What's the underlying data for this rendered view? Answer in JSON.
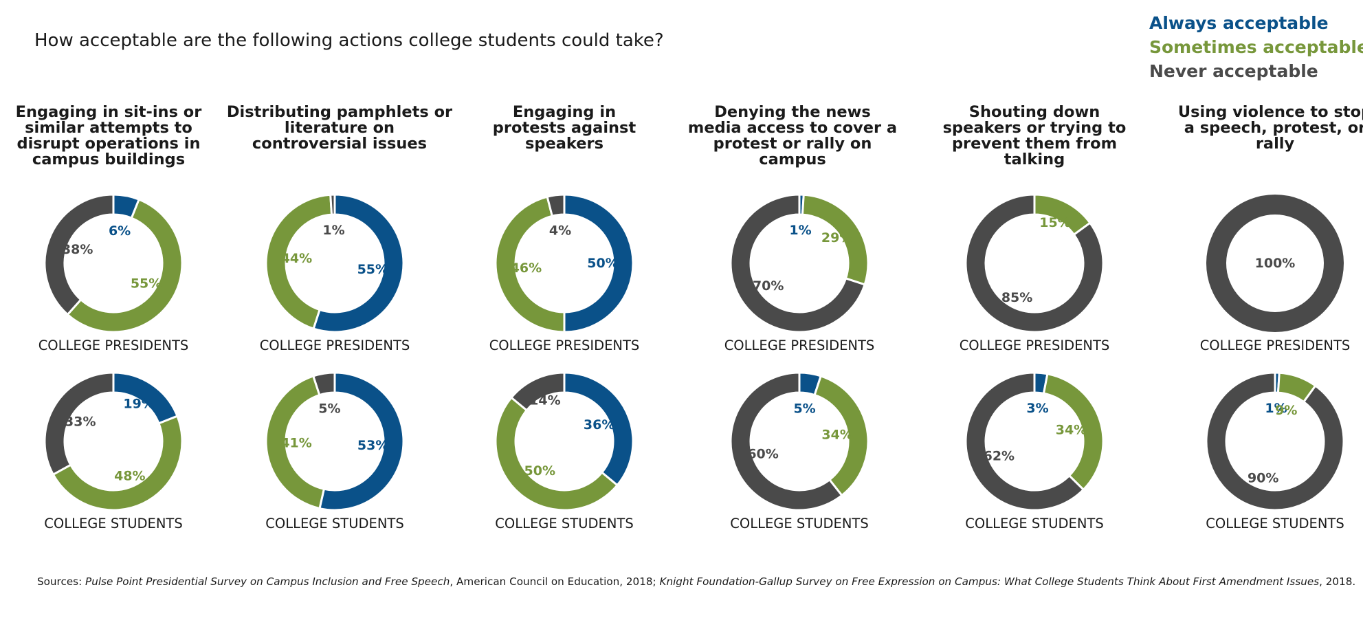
{
  "title": "How acceptable are the following actions college students could take?",
  "colors": {
    "always": "#0a5189",
    "sometimes": "#77973b",
    "never": "#4a4a4a"
  },
  "legend": [
    "Always acceptable",
    "Sometimes acceptable",
    "Never acceptable"
  ],
  "groups": {
    "presidents": "COLLEGE PRESIDENTS",
    "students": "COLLEGE STUDENTS"
  },
  "chart_data": [
    {
      "type": "pie",
      "title": "Engaging in sit-ins or similar attempts to disrupt operations in campus buildings",
      "categories": [
        "Always acceptable",
        "Sometimes acceptable",
        "Never acceptable"
      ],
      "series": [
        {
          "name": "COLLEGE PRESIDENTS",
          "values": [
            6,
            55,
            38
          ]
        },
        {
          "name": "COLLEGE STUDENTS",
          "values": [
            19,
            48,
            33
          ]
        }
      ]
    },
    {
      "type": "pie",
      "title": "Distributing pamphlets or literature on controversial issues",
      "categories": [
        "Always acceptable",
        "Sometimes acceptable",
        "Never acceptable"
      ],
      "series": [
        {
          "name": "COLLEGE PRESIDENTS",
          "values": [
            55,
            44,
            1
          ]
        },
        {
          "name": "COLLEGE STUDENTS",
          "values": [
            53,
            41,
            5
          ]
        }
      ]
    },
    {
      "type": "pie",
      "title": "Engaging in protests against speakers",
      "categories": [
        "Always acceptable",
        "Sometimes acceptable",
        "Never acceptable"
      ],
      "series": [
        {
          "name": "COLLEGE PRESIDENTS",
          "values": [
            50,
            46,
            4
          ]
        },
        {
          "name": "COLLEGE STUDENTS",
          "values": [
            36,
            50,
            14
          ]
        }
      ]
    },
    {
      "type": "pie",
      "title": "Denying the news media access to cover a protest or rally on campus",
      "categories": [
        "Always acceptable",
        "Sometimes acceptable",
        "Never acceptable"
      ],
      "series": [
        {
          "name": "COLLEGE PRESIDENTS",
          "values": [
            1,
            29,
            70
          ]
        },
        {
          "name": "COLLEGE STUDENTS",
          "values": [
            5,
            34,
            60
          ]
        }
      ]
    },
    {
      "type": "pie",
      "title": "Shouting down speakers or trying to prevent them from talking",
      "categories": [
        "Always acceptable",
        "Sometimes acceptable",
        "Never acceptable"
      ],
      "series": [
        {
          "name": "COLLEGE PRESIDENTS",
          "values": [
            0,
            15,
            85
          ]
        },
        {
          "name": "COLLEGE STUDENTS",
          "values": [
            3,
            34,
            62
          ]
        }
      ]
    },
    {
      "type": "pie",
      "title": "Using violence to stop a speech, protest, or rally",
      "categories": [
        "Always acceptable",
        "Sometimes acceptable",
        "Never acceptable"
      ],
      "series": [
        {
          "name": "COLLEGE PRESIDENTS",
          "values": [
            0,
            0,
            100
          ]
        },
        {
          "name": "COLLEGE STUDENTS",
          "values": [
            1,
            9,
            90
          ]
        }
      ]
    }
  ],
  "sources": {
    "prefix": "Sources: ",
    "source1": "Pulse Point Presidential Survey on Campus Inclusion and Free Speech",
    "middle": ", American Council on Education, 2018; ",
    "source2": "Knight Foundation-Gallup Survey on Free Expression on Campus: What College Students Think About First Amendment Issues",
    "suffix": ", 2018."
  }
}
